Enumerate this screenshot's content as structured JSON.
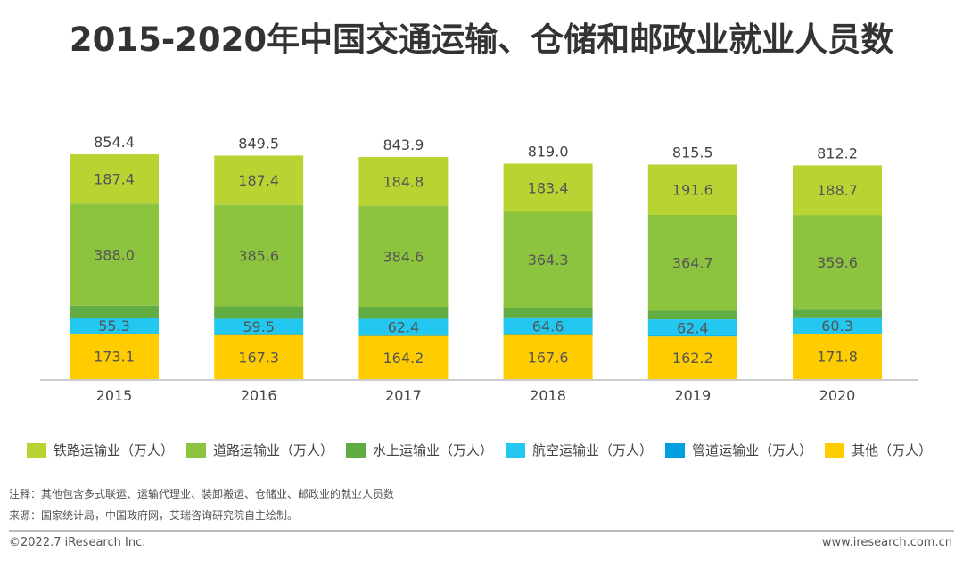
{
  "chart_data": {
    "type": "bar",
    "stacked": true,
    "title": "2015-2020年中国交通运输、仓储和邮政业就业人员数",
    "categories": [
      "2015",
      "2016",
      "2017",
      "2018",
      "2019",
      "2020"
    ],
    "totals": [
      854.4,
      849.5,
      843.9,
      819.0,
      815.5,
      812.2
    ],
    "series": [
      {
        "name": "其他（万人）",
        "color": "#FFCC00",
        "values": [
          173.1,
          167.3,
          164.2,
          167.6,
          162.2,
          171.8
        ],
        "labeled": true
      },
      {
        "name": "管道运输业（万人）",
        "color": "#00A0E0",
        "values": [
          2.2,
          2.2,
          2.2,
          2.2,
          2.2,
          2.2
        ],
        "labeled": false
      },
      {
        "name": "航空运输业（万人）",
        "color": "#22C8F0",
        "values": [
          55.3,
          59.5,
          62.4,
          64.6,
          62.4,
          60.3
        ],
        "labeled": true
      },
      {
        "name": "水上运输业（万人）",
        "color": "#62AC44",
        "values": [
          48.4,
          47.5,
          45.7,
          36.9,
          32.4,
          29.6
        ],
        "labeled": false
      },
      {
        "name": "道路运输业（万人）",
        "color": "#8DC43F",
        "values": [
          388.0,
          385.6,
          384.6,
          364.3,
          364.7,
          359.6
        ],
        "labeled": true
      },
      {
        "name": "铁路运输业（万人）",
        "color": "#B8D432",
        "values": [
          187.4,
          187.4,
          184.8,
          183.4,
          191.6,
          188.7
        ],
        "labeled": true
      }
    ],
    "legend_order": [
      "铁路运输业（万人）",
      "道路运输业（万人）",
      "水上运输业（万人）",
      "航空运输业（万人）",
      "管道运输业（万人）",
      "其他（万人）"
    ],
    "legend": "bottom",
    "grid": false
  },
  "notes": {
    "note": "注释：其他包含多式联运、运输代理业、装卸搬运、仓储业、邮政业的就业人员数",
    "source": "来源：国家统计局，中国政府网，艾瑞咨询研究院自主绘制。"
  },
  "footer": {
    "copyright": "©2022.7 iResearch Inc.",
    "url": "www.iresearch.com.cn"
  }
}
